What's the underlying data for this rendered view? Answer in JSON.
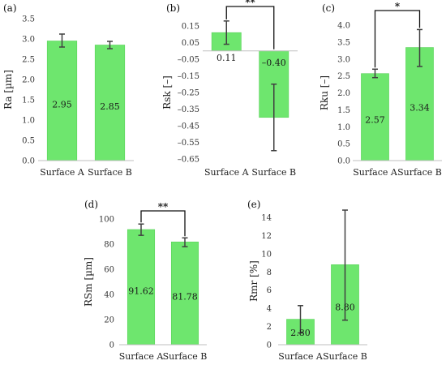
{
  "colors": {
    "bar": "#6ee66e",
    "bar_stroke": "#59d259",
    "error": "#404040",
    "axis": "#bfbfbf"
  },
  "chart_data": [
    {
      "panel": "(a)",
      "type": "bar",
      "categories": [
        "Surface A",
        "Surface B"
      ],
      "values": [
        2.95,
        2.85
      ],
      "value_labels": [
        "2.95",
        "2.85"
      ],
      "error_low": [
        2.8,
        2.76
      ],
      "error_high": [
        3.12,
        2.94
      ],
      "ylabel": "Ra [µm]",
      "ylim": [
        0,
        3.5
      ],
      "yticks": [
        0.0,
        0.5,
        1.0,
        1.5,
        2.0,
        2.5,
        3.0,
        3.5
      ],
      "ytick_labels": [
        "0.0",
        "0.5",
        "1.0",
        "1.5",
        "2.0",
        "2.5",
        "3.0",
        "3.5"
      ],
      "significance": ""
    },
    {
      "panel": "(b)",
      "type": "bar",
      "categories": [
        "Surface A",
        "Surface B"
      ],
      "values": [
        0.11,
        -0.4
      ],
      "value_labels": [
        "0.11",
        "–0.40"
      ],
      "error_low": [
        0.04,
        -0.6
      ],
      "error_high": [
        0.18,
        -0.2
      ],
      "ylabel": "Rsk [–]",
      "ylim": [
        -0.65,
        0.15
      ],
      "yticks": [
        0.15,
        0.05,
        -0.05,
        -0.15,
        -0.25,
        -0.35,
        -0.45,
        -0.55,
        -0.65
      ],
      "ytick_labels": [
        "0.15",
        "0.05",
        "–0.05",
        "–0.15",
        "–0.25",
        "–0.35",
        "–0.45",
        "–0.55",
        "–0.65"
      ],
      "significance": "**"
    },
    {
      "panel": "(c)",
      "type": "bar",
      "categories": [
        "Surface A",
        "Surface B"
      ],
      "values": [
        2.57,
        3.34
      ],
      "value_labels": [
        "2.57",
        "3.34"
      ],
      "error_low": [
        2.45,
        2.78
      ],
      "error_high": [
        2.7,
        3.87
      ],
      "ylabel": "Rku [–]",
      "ylim": [
        0,
        4.0
      ],
      "yticks": [
        0.0,
        0.5,
        1.0,
        1.5,
        2.0,
        2.5,
        3.0,
        3.5,
        4.0
      ],
      "ytick_labels": [
        "0.0",
        "0.5",
        "1.0",
        "1.5",
        "2.0",
        "2.5",
        "3.0",
        "3.5",
        "4.0"
      ],
      "significance": "*"
    },
    {
      "panel": "(d)",
      "type": "bar",
      "categories": [
        "Surface A",
        "Surface B"
      ],
      "values": [
        91.62,
        81.78
      ],
      "value_labels": [
        "91.62",
        "81.78"
      ],
      "error_low": [
        87,
        78
      ],
      "error_high": [
        96,
        85
      ],
      "ylabel": "RSm [µm]",
      "ylim": [
        0,
        100
      ],
      "yticks": [
        0,
        20,
        40,
        60,
        80,
        100
      ],
      "ytick_labels": [
        "0",
        "20",
        "40",
        "60",
        "80",
        "100"
      ],
      "significance": "**"
    },
    {
      "panel": "(e)",
      "type": "bar",
      "categories": [
        "Surface A",
        "Surface B"
      ],
      "values": [
        2.8,
        8.8
      ],
      "value_labels": [
        "2.80",
        "8.80"
      ],
      "error_low": [
        1.3,
        2.7
      ],
      "error_high": [
        4.3,
        14.8
      ],
      "ylabel": "Rmr [%]",
      "ylim": [
        0,
        14
      ],
      "yticks": [
        0,
        2,
        4,
        6,
        8,
        10,
        12,
        14
      ],
      "ytick_labels": [
        "0",
        "2",
        "4",
        "6",
        "8",
        "10",
        "12",
        "14"
      ],
      "significance": ""
    }
  ]
}
